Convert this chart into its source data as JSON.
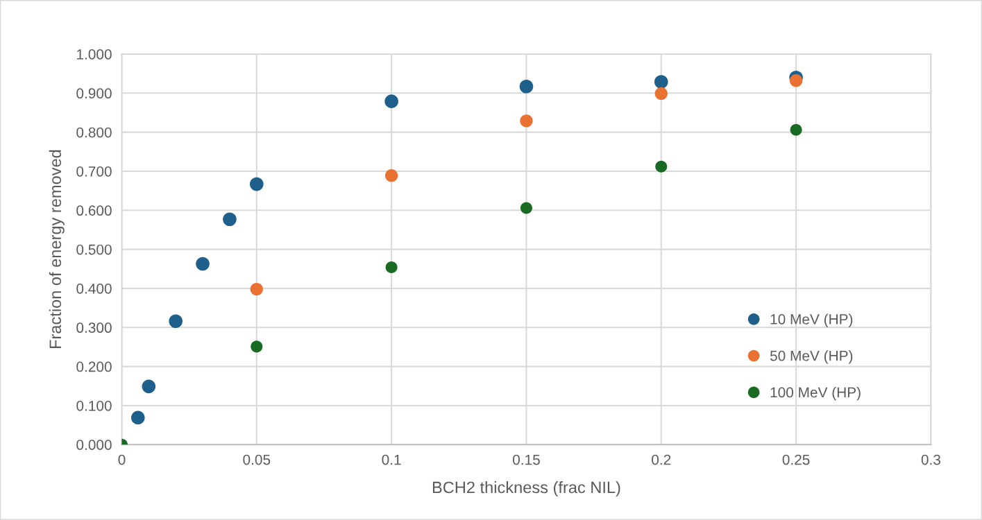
{
  "chart_data": {
    "type": "scatter",
    "xlabel": "BCH2 thickness (frac NIL)",
    "ylabel": "Fraction of energy removed",
    "xlim": [
      0,
      0.3
    ],
    "xticks": [
      0,
      0.05,
      0.1,
      0.15,
      0.2,
      0.25,
      0.3
    ],
    "ylim": [
      0,
      1.0
    ],
    "yticks": [
      {
        "value": 0,
        "label": "0.000"
      },
      {
        "value": 0.1,
        "label": "0.100"
      },
      {
        "value": 0.2,
        "label": "0.200"
      },
      {
        "value": 0.3,
        "label": "0.300"
      },
      {
        "value": 0.4,
        "label": "0.400"
      },
      {
        "value": 0.5,
        "label": "0.500"
      },
      {
        "value": 0.6,
        "label": "0.600"
      },
      {
        "value": 0.7,
        "label": "0.700"
      },
      {
        "value": 0.8,
        "label": "0.800"
      },
      {
        "value": 0.9,
        "label": "0.900"
      },
      {
        "value": 1.0,
        "label": "1.000"
      }
    ],
    "grid": true,
    "legend": "bottom right",
    "marker": "circle",
    "series": [
      {
        "name": "10 MeV (HP)",
        "color": "#1f5f8b",
        "x": [
          0.006,
          0.01,
          0.02,
          0.03,
          0.04,
          0.05,
          0.1,
          0.15,
          0.2,
          0.25
        ],
        "values": [
          0.069,
          0.149,
          0.316,
          0.463,
          0.577,
          0.667,
          0.879,
          0.917,
          0.929,
          0.94
        ]
      },
      {
        "name": "50 MeV (HP)",
        "color": "#e97132",
        "x": [
          0.05,
          0.1,
          0.15,
          0.2,
          0.25
        ],
        "values": [
          0.398,
          0.689,
          0.829,
          0.899,
          0.932
        ]
      },
      {
        "name": "100 MeV (HP)",
        "color": "#196b24",
        "x": [
          0,
          0.05,
          0.1,
          0.15,
          0.2,
          0.25
        ],
        "values": [
          0,
          0.251,
          0.454,
          0.606,
          0.712,
          0.806
        ]
      }
    ]
  }
}
